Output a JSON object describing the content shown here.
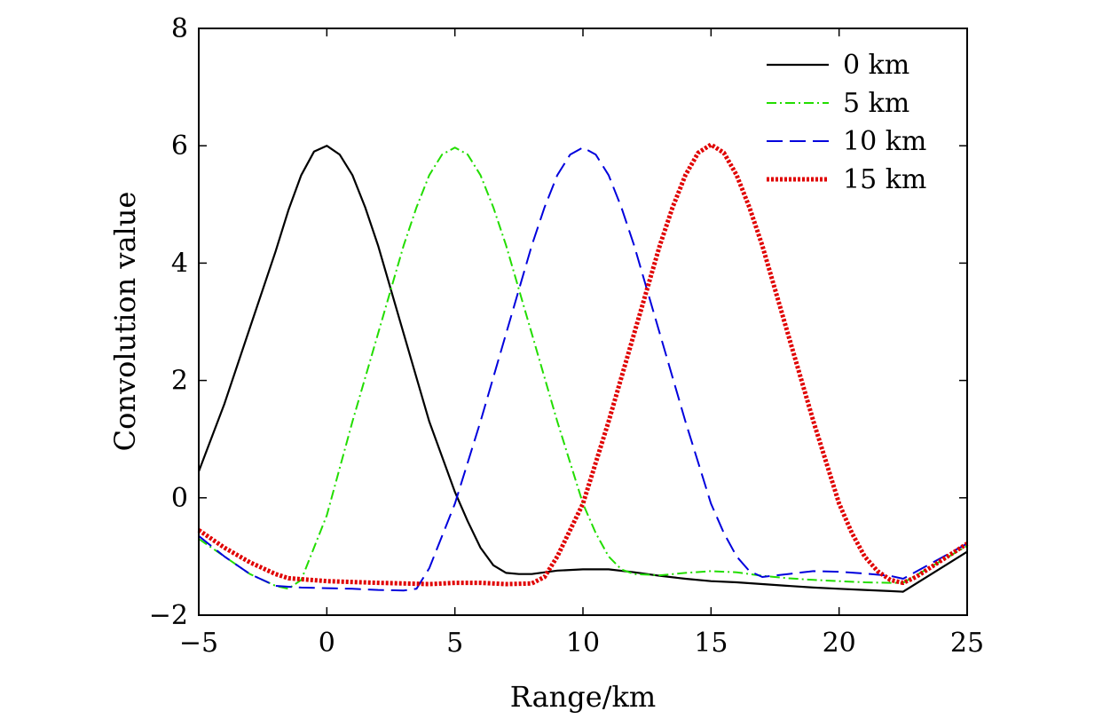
{
  "chart_data": {
    "type": "line",
    "title": "",
    "xlabel": "Range/km",
    "ylabel": "Convolution value",
    "xlim": [
      -5,
      25
    ],
    "ylim": [
      -2,
      8
    ],
    "xticks": [
      -5,
      0,
      5,
      10,
      15,
      20,
      25
    ],
    "yticks": [
      -2,
      0,
      2,
      4,
      6,
      8
    ],
    "xtick_labels": [
      "−5",
      "0",
      "5",
      "10",
      "15",
      "20",
      "25"
    ],
    "ytick_labels": [
      "−2",
      "0",
      "2",
      "4",
      "6",
      "8"
    ],
    "grid": false,
    "legend_position": "top-right",
    "series": [
      {
        "name": "0 km",
        "color": "#000000",
        "style": "solid",
        "points": [
          [
            -5,
            0.45
          ],
          [
            -4,
            1.6
          ],
          [
            -3,
            2.9
          ],
          [
            -2,
            4.2
          ],
          [
            -1.5,
            4.9
          ],
          [
            -1,
            5.5
          ],
          [
            -0.5,
            5.9
          ],
          [
            0,
            6.0
          ],
          [
            0.5,
            5.85
          ],
          [
            1,
            5.5
          ],
          [
            1.5,
            4.95
          ],
          [
            2,
            4.3
          ],
          [
            3,
            2.8
          ],
          [
            4,
            1.3
          ],
          [
            5,
            0.1
          ],
          [
            5.5,
            -0.4
          ],
          [
            6,
            -0.85
          ],
          [
            6.5,
            -1.15
          ],
          [
            7,
            -1.28
          ],
          [
            7.5,
            -1.3
          ],
          [
            8,
            -1.3
          ],
          [
            9,
            -1.24
          ],
          [
            10,
            -1.22
          ],
          [
            11,
            -1.22
          ],
          [
            12,
            -1.27
          ],
          [
            13,
            -1.33
          ],
          [
            14,
            -1.38
          ],
          [
            15,
            -1.42
          ],
          [
            16,
            -1.44
          ],
          [
            17,
            -1.47
          ],
          [
            18,
            -1.5
          ],
          [
            19,
            -1.53
          ],
          [
            20,
            -1.55
          ],
          [
            21,
            -1.57
          ],
          [
            22,
            -1.59
          ],
          [
            22.5,
            -1.6
          ],
          [
            25,
            -0.92
          ]
        ]
      },
      {
        "name": "5 km",
        "color": "#22dd00",
        "style": "dashdot",
        "points": [
          [
            -5,
            -0.7
          ],
          [
            -4,
            -1.0
          ],
          [
            -3,
            -1.3
          ],
          [
            -2,
            -1.5
          ],
          [
            -1.5,
            -1.55
          ],
          [
            -1,
            -1.4
          ],
          [
            0,
            -0.3
          ],
          [
            1,
            1.3
          ],
          [
            2,
            2.8
          ],
          [
            3,
            4.3
          ],
          [
            3.5,
            4.95
          ],
          [
            4,
            5.5
          ],
          [
            4.5,
            5.85
          ],
          [
            5,
            5.97
          ],
          [
            5.5,
            5.85
          ],
          [
            6,
            5.5
          ],
          [
            6.5,
            4.95
          ],
          [
            7,
            4.3
          ],
          [
            8,
            2.8
          ],
          [
            9,
            1.3
          ],
          [
            10,
            -0.1
          ],
          [
            10.5,
            -0.6
          ],
          [
            11,
            -1.0
          ],
          [
            11.5,
            -1.22
          ],
          [
            12,
            -1.3
          ],
          [
            13,
            -1.32
          ],
          [
            14,
            -1.28
          ],
          [
            15,
            -1.25
          ],
          [
            16,
            -1.27
          ],
          [
            17,
            -1.33
          ],
          [
            18,
            -1.37
          ],
          [
            19,
            -1.4
          ],
          [
            20,
            -1.42
          ],
          [
            21,
            -1.44
          ],
          [
            22,
            -1.45
          ],
          [
            22.5,
            -1.45
          ],
          [
            25,
            -0.82
          ]
        ]
      },
      {
        "name": "10 km",
        "color": "#0000dd",
        "style": "dashed",
        "points": [
          [
            -5,
            -0.65
          ],
          [
            -4,
            -1.0
          ],
          [
            -3,
            -1.3
          ],
          [
            -2,
            -1.5
          ],
          [
            -1,
            -1.53
          ],
          [
            0,
            -1.54
          ],
          [
            1,
            -1.55
          ],
          [
            2,
            -1.57
          ],
          [
            3,
            -1.58
          ],
          [
            3.5,
            -1.55
          ],
          [
            4,
            -1.2
          ],
          [
            5,
            -0.1
          ],
          [
            6,
            1.3
          ],
          [
            7,
            2.8
          ],
          [
            8,
            4.3
          ],
          [
            8.5,
            4.95
          ],
          [
            9,
            5.5
          ],
          [
            9.5,
            5.85
          ],
          [
            10,
            5.97
          ],
          [
            10.5,
            5.85
          ],
          [
            11,
            5.5
          ],
          [
            11.5,
            4.95
          ],
          [
            12,
            4.3
          ],
          [
            13,
            2.8
          ],
          [
            14,
            1.3
          ],
          [
            15,
            -0.1
          ],
          [
            15.5,
            -0.6
          ],
          [
            16,
            -1.0
          ],
          [
            16.5,
            -1.25
          ],
          [
            17,
            -1.35
          ],
          [
            18,
            -1.3
          ],
          [
            19,
            -1.25
          ],
          [
            20,
            -1.26
          ],
          [
            21,
            -1.29
          ],
          [
            22,
            -1.33
          ],
          [
            22.5,
            -1.38
          ],
          [
            25,
            -0.78
          ]
        ]
      },
      {
        "name": "15 km",
        "color": "#e00000",
        "style": "dotted",
        "points": [
          [
            -5,
            -0.55
          ],
          [
            -4,
            -0.85
          ],
          [
            -3,
            -1.1
          ],
          [
            -2,
            -1.3
          ],
          [
            -1.5,
            -1.37
          ],
          [
            0,
            -1.42
          ],
          [
            2,
            -1.45
          ],
          [
            4,
            -1.47
          ],
          [
            5,
            -1.45
          ],
          [
            6,
            -1.45
          ],
          [
            7,
            -1.47
          ],
          [
            8,
            -1.46
          ],
          [
            8.5,
            -1.35
          ],
          [
            9,
            -1.0
          ],
          [
            10,
            -0.1
          ],
          [
            11,
            1.3
          ],
          [
            12,
            2.8
          ],
          [
            13,
            4.3
          ],
          [
            13.5,
            4.95
          ],
          [
            14,
            5.5
          ],
          [
            14.5,
            5.88
          ],
          [
            15,
            6.02
          ],
          [
            15.5,
            5.88
          ],
          [
            16,
            5.5
          ],
          [
            16.5,
            4.95
          ],
          [
            17,
            4.3
          ],
          [
            18,
            2.8
          ],
          [
            19,
            1.3
          ],
          [
            20,
            -0.1
          ],
          [
            20.5,
            -0.6
          ],
          [
            21,
            -1.0
          ],
          [
            21.5,
            -1.25
          ],
          [
            22,
            -1.4
          ],
          [
            22.5,
            -1.45
          ],
          [
            23,
            -1.35
          ],
          [
            25,
            -0.78
          ]
        ]
      }
    ]
  }
}
